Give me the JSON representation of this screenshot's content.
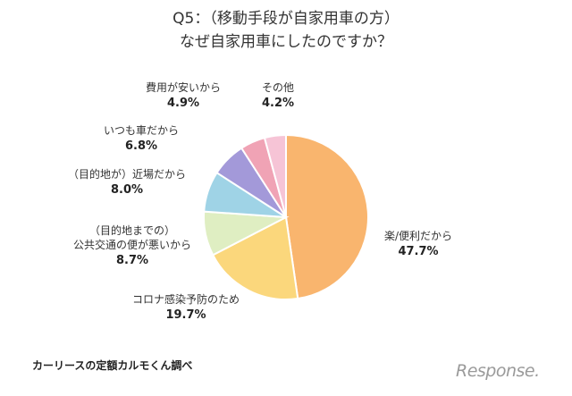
{
  "title_line1": "Q5：（移動手段が自家用車の方）",
  "title_line2": "なぜ自家用車にしたのですか？",
  "source": "カーリースの定額カルモくん調べ",
  "logo": "Response.",
  "chart_data": {
    "type": "pie",
    "title": "Q5：（移動手段が自家用車の方） なぜ自家用車にしたのですか？",
    "unit": "%",
    "slices": [
      {
        "label": "楽/便利だから",
        "value": 47.7,
        "value_label": "47.7%",
        "color": "#f9b56e"
      },
      {
        "label": "コロナ感染予防のため",
        "value": 19.7,
        "value_label": "19.7%",
        "color": "#fbd77c"
      },
      {
        "label": "（目的地までの）公共交通の便が悪いから",
        "label_lines": [
          "（目的地までの）",
          "公共交通の便が悪いから"
        ],
        "value": 8.7,
        "value_label": "8.7%",
        "color": "#dfeec2"
      },
      {
        "label": "（目的地が）近場だから",
        "value": 8.0,
        "value_label": "8.0%",
        "color": "#9fd3e6"
      },
      {
        "label": "いつも車だから",
        "value": 6.8,
        "value_label": "6.8%",
        "color": "#a399d9"
      },
      {
        "label": "費用が安いから",
        "value": 4.9,
        "value_label": "4.9%",
        "color": "#f0a3b5"
      },
      {
        "label": "その他",
        "value": 4.2,
        "value_label": "4.2%",
        "color": "#f6c4d6"
      }
    ]
  }
}
